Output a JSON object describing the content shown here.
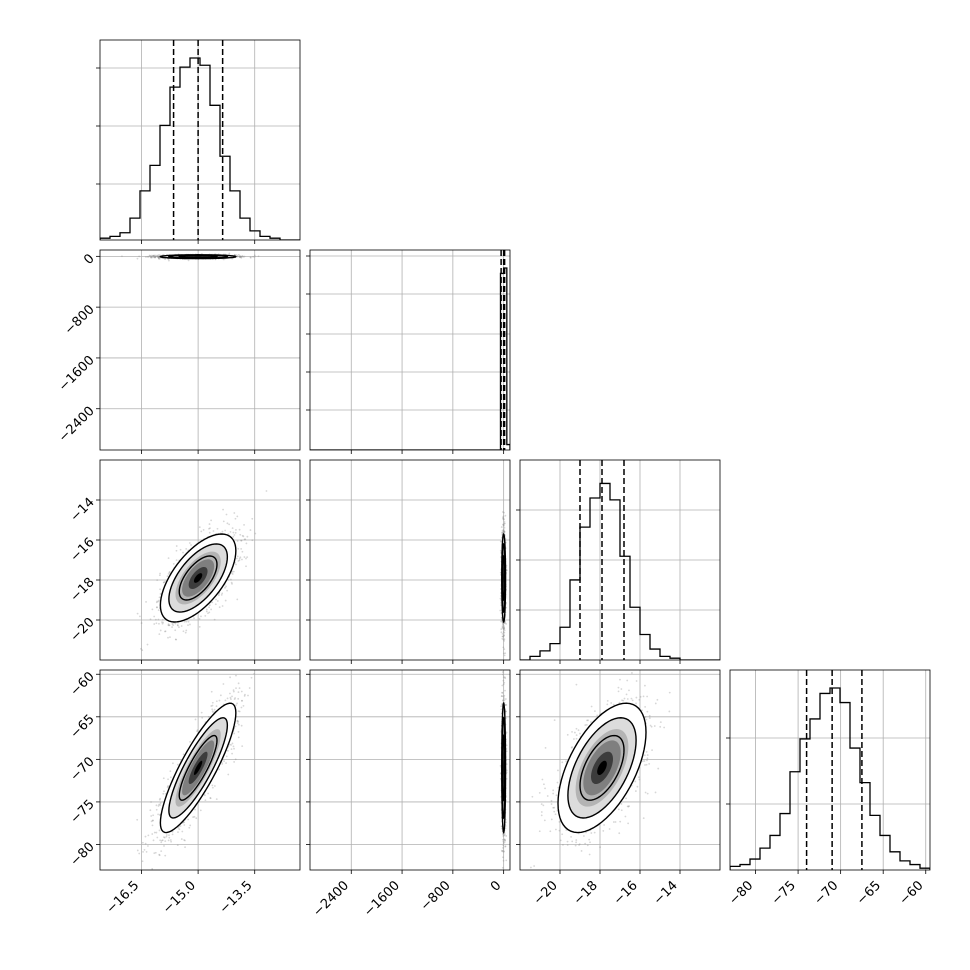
{
  "chart_data": {
    "type": "corner",
    "grid": true,
    "colors": {
      "line": "#000000",
      "grid": "#b0b0b0",
      "samples": "#8c8c8c"
    },
    "parameters": [
      {
        "ticks": [
          -16.5,
          -15.0,
          -13.5
        ],
        "tick_labels": [
          "−16.5",
          "−15.0",
          "−13.5"
        ],
        "range": [
          -17.6,
          -12.3
        ]
      },
      {
        "ticks": [
          -2400,
          -1600,
          -800,
          0
        ],
        "tick_labels": [
          "−2400",
          "−1600",
          "−800",
          "0"
        ],
        "range": [
          -3050,
          100
        ]
      },
      {
        "ticks": [
          -20,
          -18,
          -16,
          -14
        ],
        "tick_labels": [
          "−20",
          "−18",
          "−16",
          "−14"
        ],
        "range": [
          -22.0,
          -12.0
        ]
      },
      {
        "ticks": [
          -80,
          -75,
          -70,
          -65,
          -60
        ],
        "tick_labels": [
          "−80",
          "−75",
          "−70",
          "−65",
          "−60"
        ],
        "range": [
          -83.0,
          -59.5
        ]
      }
    ],
    "diag_quantiles": [
      [
        -15.65,
        -15.0,
        -14.35
      ],
      [
        -40,
        0,
        15
      ],
      [
        -19.0,
        -17.9,
        -16.8
      ],
      [
        -74.0,
        -71.0,
        -67.5
      ]
    ],
    "diag_y_ticks": [
      [
        0.28,
        0.57,
        0.86
      ],
      [
        0.2,
        0.39,
        0.58,
        0.78,
        0.97
      ],
      [
        0.25,
        0.5,
        0.75
      ],
      [
        0.33,
        0.66
      ]
    ],
    "histograms": [
      {
        "bins": [
          -17.6,
          -12.3
        ],
        "counts": [
          0.01,
          0.02,
          0.04,
          0.12,
          0.27,
          0.41,
          0.63,
          0.84,
          0.95,
          1.0,
          0.96,
          0.74,
          0.46,
          0.27,
          0.12,
          0.05,
          0.02,
          0.01,
          0.0,
          0.0
        ]
      },
      {
        "bins": [
          -3050,
          100
        ],
        "counts": [
          0,
          0,
          0,
          0,
          0,
          0,
          0,
          0,
          0,
          0,
          0,
          0,
          0,
          0,
          0,
          0,
          0,
          0,
          0,
          0,
          0,
          0,
          0,
          0,
          0,
          0,
          0,
          0,
          0,
          0,
          0,
          0,
          0,
          0,
          0,
          0,
          0,
          0,
          0,
          0,
          0,
          0,
          0,
          0,
          0,
          0,
          0,
          0,
          0,
          0,
          0,
          0,
          0,
          0,
          0,
          0,
          0,
          0,
          0,
          0,
          0.97,
          1.0,
          0.03
        ]
      },
      {
        "bins": [
          -22.0,
          -12.0
        ],
        "counts": [
          0.0,
          0.02,
          0.05,
          0.09,
          0.18,
          0.44,
          0.73,
          0.89,
          0.97,
          0.88,
          0.57,
          0.29,
          0.14,
          0.06,
          0.02,
          0.01,
          0.0,
          0.0,
          0.0,
          0.0
        ]
      },
      {
        "bins": [
          -83.0,
          -59.5
        ],
        "counts": [
          0.02,
          0.03,
          0.06,
          0.12,
          0.19,
          0.31,
          0.54,
          0.72,
          0.83,
          0.97,
          1.0,
          0.92,
          0.67,
          0.48,
          0.3,
          0.19,
          0.1,
          0.05,
          0.03,
          0.01
        ]
      }
    ],
    "pairs": [
      {
        "row": 1,
        "col": 0,
        "center": [
          -15.0,
          -5
        ],
        "sigma": [
          0.5,
          15
        ],
        "rho": 0.0
      },
      {
        "row": 2,
        "col": 0,
        "center": [
          -15.0,
          -17.9
        ],
        "sigma": [
          0.5,
          1.1
        ],
        "rho": 0.62
      },
      {
        "row": 2,
        "col": 1,
        "center": [
          0,
          -17.9
        ],
        "sigma": [
          15,
          1.1
        ],
        "rho": 0.0
      },
      {
        "row": 3,
        "col": 0,
        "center": [
          -15.0,
          -71.0
        ],
        "sigma": [
          0.5,
          3.8
        ],
        "rho": 0.85
      },
      {
        "row": 3,
        "col": 1,
        "center": [
          0,
          -71.0
        ],
        "sigma": [
          15,
          3.8
        ],
        "rho": 0.0
      },
      {
        "row": 3,
        "col": 2,
        "center": [
          -17.9,
          -71.0
        ],
        "sigma": [
          1.1,
          3.8
        ],
        "rho": 0.55
      }
    ]
  }
}
